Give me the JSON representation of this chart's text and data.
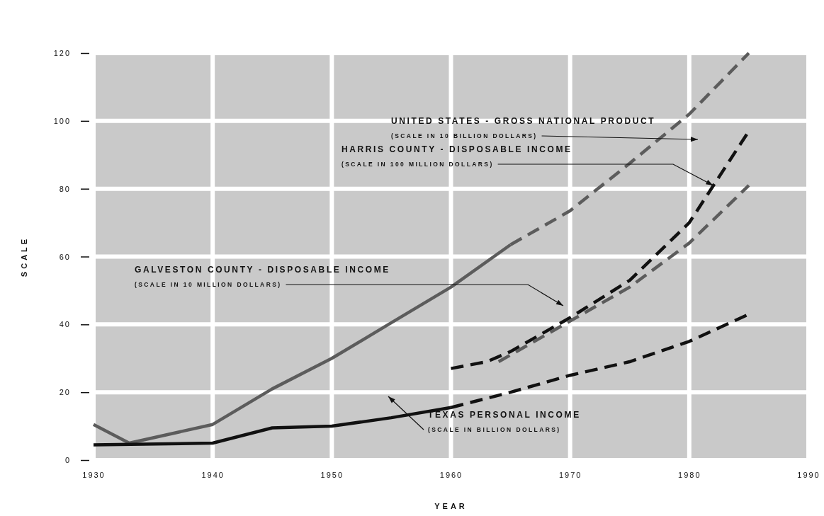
{
  "chart_data": {
    "type": "line",
    "xlabel": "YEAR",
    "ylabel": "SCALE",
    "xlim": [
      1930,
      1990
    ],
    "ylim": [
      0,
      120
    ],
    "xticks": [
      1930,
      1940,
      1950,
      1960,
      1970,
      1980,
      1990
    ],
    "yticks": [
      0,
      20,
      40,
      60,
      80,
      100,
      120
    ],
    "grid": true,
    "marker": "none",
    "series": [
      {
        "color": "#5c5c5c",
        "line_style": "solid",
        "x": [
          1930,
          1933,
          1940,
          1945,
          1950,
          1955,
          1960,
          1965
        ],
        "values": [
          10.5,
          5,
          10.5,
          21,
          30,
          40.5,
          51,
          63.5
        ]
      },
      {
        "color": "#5c5c5c",
        "line_style": "dashed",
        "x": [
          1965,
          1970,
          1975,
          1980,
          1985
        ],
        "values": [
          63.5,
          73.5,
          87.5,
          102,
          120
        ]
      },
      {
        "color": "#111111",
        "line_style": "solid",
        "x": [
          1930,
          1940,
          1945,
          1950,
          1955,
          1960
        ],
        "values": [
          4.5,
          5,
          9.5,
          10,
          12.5,
          15.5
        ]
      },
      {
        "color": "#111111",
        "line_style": "dashed",
        "x": [
          1960,
          1965,
          1970,
          1975,
          1980,
          1985
        ],
        "values": [
          15.5,
          20,
          25,
          29,
          35,
          43
        ]
      },
      {
        "color": "#111111",
        "line_style": "dashed",
        "x": [
          1960,
          1963,
          1965,
          1970,
          1975,
          1980,
          1985
        ],
        "values": [
          27,
          29,
          32,
          42,
          53,
          70,
          97
        ]
      },
      {
        "color": "#5c5c5c",
        "line_style": "dashed",
        "x": [
          1964,
          1967,
          1970,
          1975,
          1980,
          1985
        ],
        "values": [
          29,
          35,
          41,
          51,
          64,
          81
        ]
      }
    ],
    "annotations": [
      "UNITED STATES - GROSS NATIONAL PRODUCT\n(SCALE IN 10 BILLION DOLLARS)",
      {
        "text": "HARRIS COUNTY - DISPOSABLE INCOME\n(SCALE IN 100 MILLION DOLLARS)",
        "x": 1982,
        "y": 81
      },
      "GALVESTON COUNTY - DISPOSABLE INCOME\n(SCALE IN 10 MILLION DOLLARS)",
      "TEXAS PERSONAL INCOME\n(SCALE IN BILLION DOLLARS)"
    ]
  }
}
